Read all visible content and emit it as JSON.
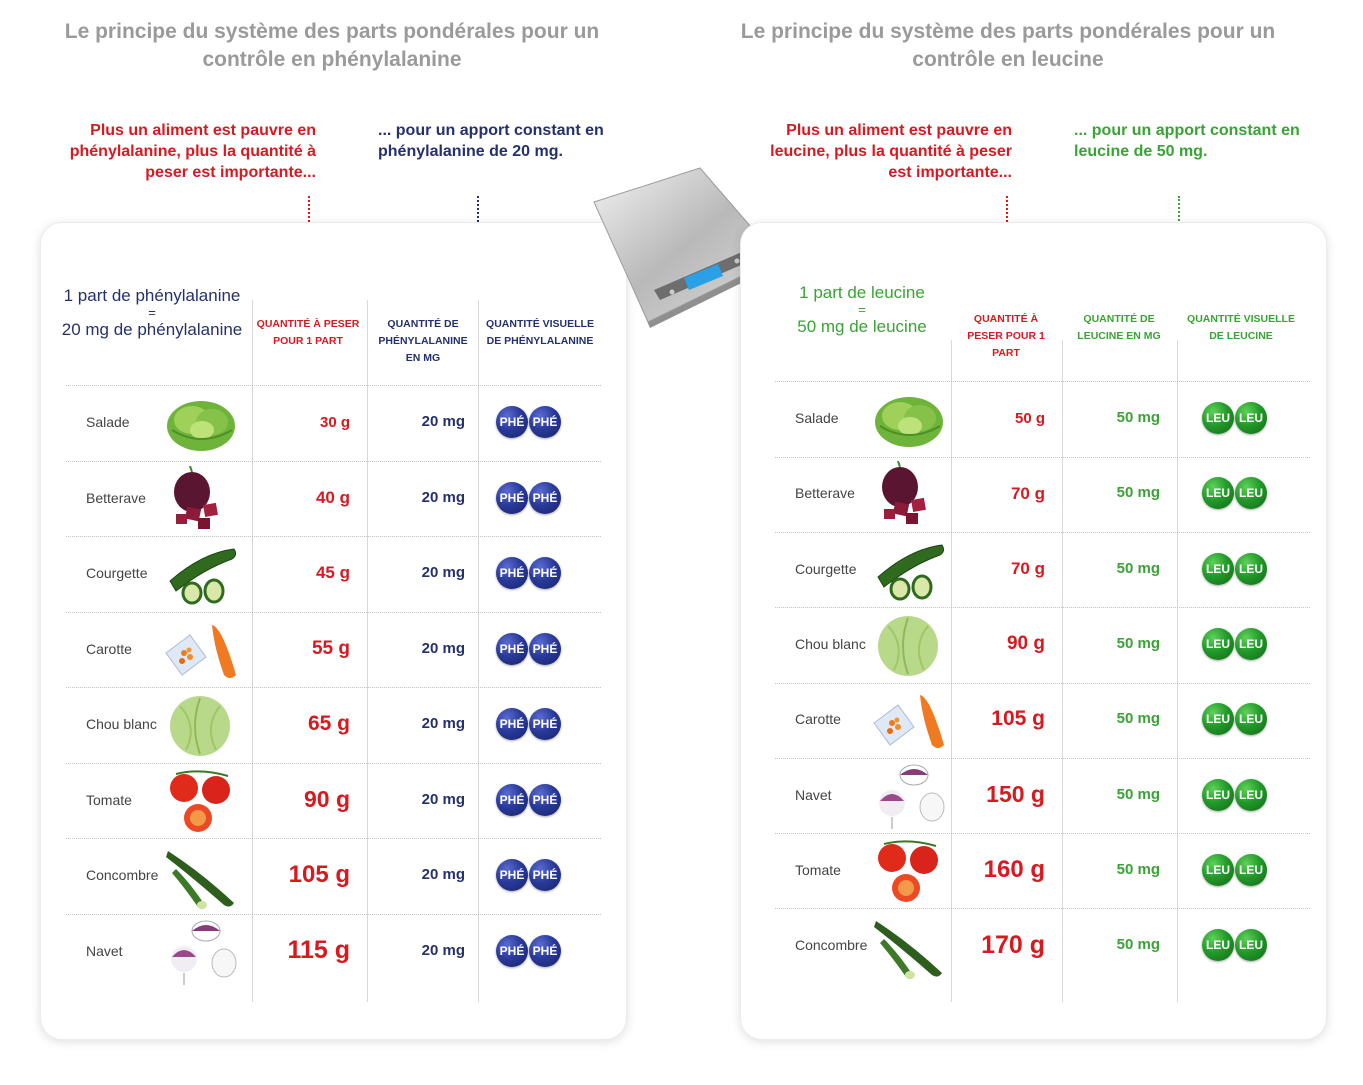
{
  "left": {
    "title": "Le principe du système des parts pondérales pour un contrôle en phénylalanine",
    "note_left": "Plus un aliment est pauvre en phénylalanine, plus la quantité à peser est importante...",
    "note_right": "... pour un apport constant en phénylalanine de 20 mg.",
    "unit_line1": "1 part de phénylalanine",
    "unit_eq": "=",
    "unit_line2": "20 mg de phénylalanine",
    "col1_header": "QUANTITÉ À PESER POUR 1 PART",
    "col2_header": "QUANTITÉ DE PHÉNYLALANINE EN MG",
    "col3_header": "QUANTITÉ VISUELLE DE PHÉNYLALANINE",
    "badge_label": "PHÉ",
    "colors": {
      "accent": "#25306e",
      "qty": "#d71920"
    },
    "rows": [
      {
        "name": "Salade",
        "icon": "lettuce-icon",
        "qty": "30 g",
        "mg": "20 mg"
      },
      {
        "name": "Betterave",
        "icon": "beetroot-icon",
        "qty": "40 g",
        "mg": "20 mg"
      },
      {
        "name": "Courgette",
        "icon": "zucchini-icon",
        "qty": "45 g",
        "mg": "20 mg"
      },
      {
        "name": "Carotte",
        "icon": "carrot-icon",
        "qty": "55 g",
        "mg": "20 mg"
      },
      {
        "name": "Chou blanc",
        "icon": "cabbage-icon",
        "qty": "65 g",
        "mg": "20 mg"
      },
      {
        "name": "Tomate",
        "icon": "tomato-icon",
        "qty": "90 g",
        "mg": "20 mg"
      },
      {
        "name": "Concombre",
        "icon": "cucumber-icon",
        "qty": "105 g",
        "mg": "20 mg"
      },
      {
        "name": "Navet",
        "icon": "turnip-icon",
        "qty": "115 g",
        "mg": "20 mg"
      }
    ]
  },
  "right": {
    "title": "Le principe du système des parts pondérales pour un contrôle en leucine",
    "note_left": "Plus un aliment est pauvre en leucine, plus la quantité à peser est importante...",
    "note_right": "... pour un apport constant en leucine de 50 mg.",
    "unit_line1": "1 part de leucine",
    "unit_eq": "=",
    "unit_line2": "50 mg de leucine",
    "col1_header": "QUANTITÉ À PESER POUR 1 PART",
    "col2_header": "QUANTITÉ DE LEUCINE EN MG",
    "col3_header": "QUANTITÉ VISUELLE DE LEUCINE",
    "badge_label": "LEU",
    "colors": {
      "accent": "#3aa335",
      "qty": "#d71920"
    },
    "rows": [
      {
        "name": "Salade",
        "icon": "lettuce-icon",
        "qty": "50 g",
        "mg": "50 mg"
      },
      {
        "name": "Betterave",
        "icon": "beetroot-icon",
        "qty": "70 g",
        "mg": "50 mg"
      },
      {
        "name": "Courgette",
        "icon": "zucchini-icon",
        "qty": "70 g",
        "mg": "50 mg"
      },
      {
        "name": "Chou blanc",
        "icon": "cabbage-icon",
        "qty": "90 g",
        "mg": "50 mg"
      },
      {
        "name": "Carotte",
        "icon": "carrot-icon",
        "qty": "105 g",
        "mg": "50 mg"
      },
      {
        "name": "Navet",
        "icon": "turnip-icon",
        "qty": "150 g",
        "mg": "50 mg"
      },
      {
        "name": "Tomate",
        "icon": "tomato-icon",
        "qty": "160 g",
        "mg": "50 mg"
      },
      {
        "name": "Concombre",
        "icon": "cucumber-icon",
        "qty": "170 g",
        "mg": "50 mg"
      }
    ]
  },
  "scale_icon": "kitchen-scale-icon"
}
